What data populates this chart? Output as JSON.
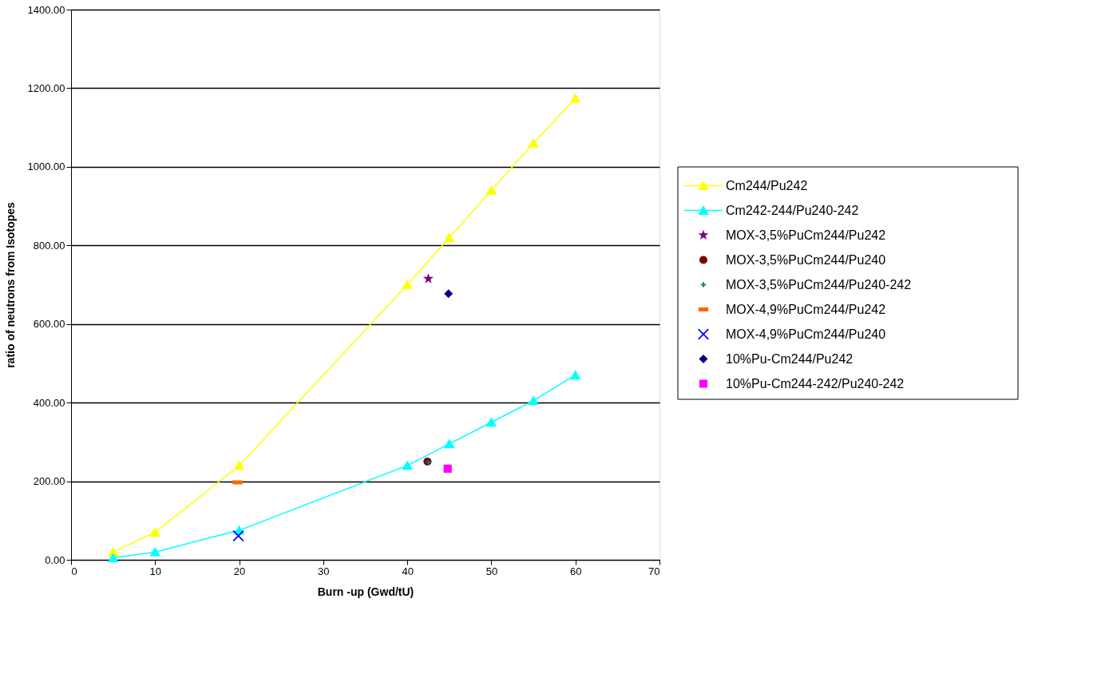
{
  "chart_data": {
    "type": "scatter",
    "xlabel": "Burn -up (Gwd/tU)",
    "ylabel": "ratio of neutrons from Isotopes",
    "xlim": [
      0,
      70
    ],
    "xticks": [
      0,
      10,
      20,
      30,
      40,
      50,
      60,
      70
    ],
    "ylim": [
      0,
      1400
    ],
    "yticks": [
      {
        "value": 0,
        "label": "0.00"
      },
      {
        "value": 200,
        "label": "200.00"
      },
      {
        "value": 400,
        "label": "400.00"
      },
      {
        "value": 600,
        "label": "600.00"
      },
      {
        "value": 800,
        "label": "800.00"
      },
      {
        "value": 1000,
        "label": "1000.00"
      },
      {
        "value": 1200,
        "label": "1200.00"
      },
      {
        "value": 1400,
        "label": "1400.00"
      }
    ],
    "grid": "y",
    "legend": "right",
    "series": [
      {
        "name": "Cm244/Pu242",
        "type": "line",
        "marker": "triangle",
        "color": "#ffff00",
        "x": [
          5,
          10,
          20,
          40,
          45,
          50,
          55,
          60
        ],
        "values": [
          20,
          70,
          240,
          700,
          820,
          940,
          1060,
          1175
        ]
      },
      {
        "name": "Cm242-244/Pu240-242",
        "type": "line",
        "marker": "triangle",
        "color": "#00ffff",
        "x": [
          5,
          10,
          20,
          40,
          45,
          50,
          55,
          60
        ],
        "values": [
          5,
          20,
          75,
          240,
          295,
          350,
          405,
          470
        ]
      },
      {
        "name": "MOX-3,5%PuCm244/Pu242",
        "marker": "star",
        "color": "#800080",
        "x": [
          42.5
        ],
        "values": [
          715
        ]
      },
      {
        "name": "MOX-3,5%PuCm244/Pu240",
        "marker": "circle",
        "color": "#800000",
        "x": [
          42.4
        ],
        "values": [
          250
        ]
      },
      {
        "name": "MOX-3,5%PuCm244/Pu240-242",
        "marker": "cross",
        "color": "#008080",
        "x": [
          42.5
        ],
        "values": [
          248
        ]
      },
      {
        "name": "MOX-4,9%PuCm244/Pu242",
        "color": "#ff6600",
        "x": [
          19.8
        ],
        "values": [
          197
        ]
      },
      {
        "name": "MOX-4,9%PuCm244/Pu240",
        "marker": "x",
        "color": "#0000ff",
        "x": [
          19.9
        ],
        "values": [
          61
        ]
      },
      {
        "name": "10%Pu-Cm244/Pu242",
        "marker": "diamond",
        "color": "#000080",
        "x": [
          44.9
        ],
        "values": [
          677
        ]
      },
      {
        "name": "10%Pu-Cm244-242/Pu240-242",
        "marker": "square",
        "color": "#ff00ff",
        "x": [
          44.8
        ],
        "values": [
          232
        ]
      }
    ]
  }
}
